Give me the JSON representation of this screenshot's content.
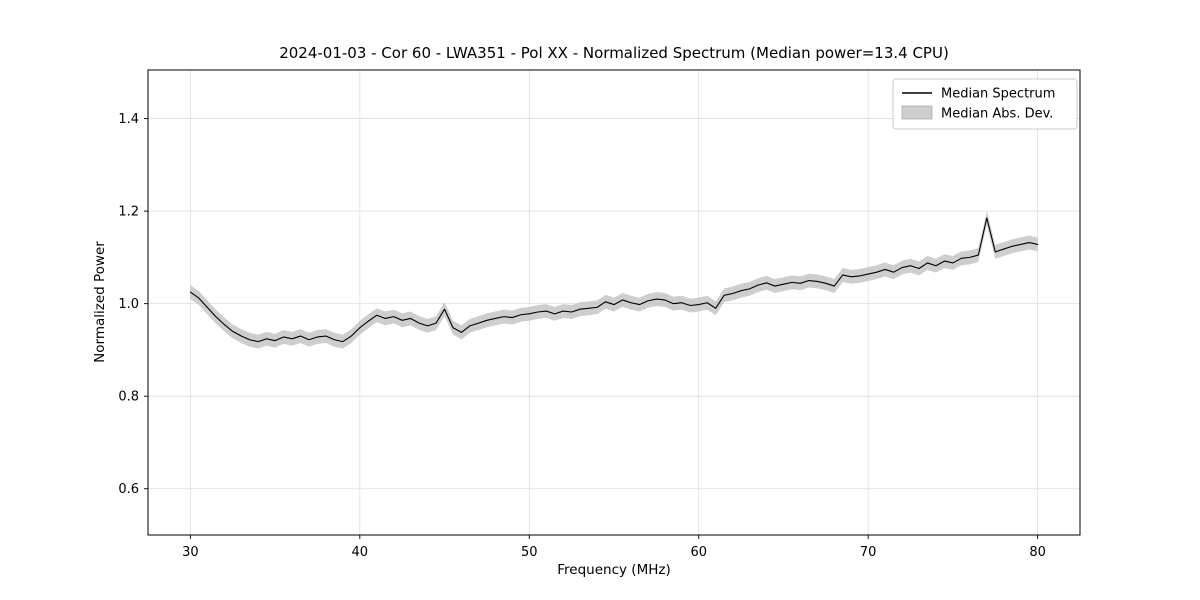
{
  "chart_data": {
    "type": "line",
    "title": "2024-01-03 - Cor 60 - LWA351 - Pol XX - Normalized Spectrum (Median power=13.4 CPU)",
    "xlabel": "Frequency (MHz)",
    "ylabel": "Normalized Power",
    "xlim": [
      27.5,
      82.5
    ],
    "ylim": [
      0.5,
      1.505
    ],
    "xticks": [
      30,
      40,
      50,
      60,
      70,
      80
    ],
    "xtick_labels": [
      "30",
      "40",
      "50",
      "60",
      "70",
      "80"
    ],
    "yticks": [
      0.6,
      0.8,
      1.0,
      1.2,
      1.4
    ],
    "ytick_labels": [
      "0.6",
      "0.8",
      "1.0",
      "1.2",
      "1.4"
    ],
    "grid": true,
    "legend_position": "upper right",
    "colors": {
      "line": "#000000",
      "band": "#bdbdbd",
      "grid": "#dedede",
      "axes_border": "#000000",
      "legend_border": "#cccccc"
    },
    "series": [
      {
        "name": "Median Spectrum",
        "type": "line",
        "color": "#000000",
        "x": [
          30.0,
          30.5,
          31.0,
          31.5,
          32.0,
          32.5,
          33.0,
          33.5,
          34.0,
          34.5,
          35.0,
          35.5,
          36.0,
          36.5,
          37.0,
          37.5,
          38.0,
          38.5,
          39.0,
          39.5,
          40.0,
          40.5,
          41.0,
          41.5,
          42.0,
          42.5,
          43.0,
          43.5,
          44.0,
          44.5,
          45.0,
          45.5,
          46.0,
          46.5,
          47.0,
          47.5,
          48.0,
          48.5,
          49.0,
          49.5,
          50.0,
          50.5,
          51.0,
          51.5,
          52.0,
          52.5,
          53.0,
          53.5,
          54.0,
          54.5,
          55.0,
          55.5,
          56.0,
          56.5,
          57.0,
          57.5,
          58.0,
          58.5,
          59.0,
          59.5,
          60.0,
          60.5,
          61.0,
          61.5,
          62.0,
          62.5,
          63.0,
          63.5,
          64.0,
          64.5,
          65.0,
          65.5,
          66.0,
          66.5,
          67.0,
          67.5,
          68.0,
          68.5,
          69.0,
          69.5,
          70.0,
          70.5,
          71.0,
          71.5,
          72.0,
          72.5,
          73.0,
          73.5,
          74.0,
          74.5,
          75.0,
          75.5,
          76.0,
          76.5,
          77.0,
          77.5,
          78.0,
          78.5,
          79.0,
          79.5,
          80.0
        ],
        "y": [
          1.025,
          1.012,
          0.992,
          0.972,
          0.955,
          0.94,
          0.93,
          0.922,
          0.918,
          0.924,
          0.92,
          0.928,
          0.924,
          0.93,
          0.922,
          0.928,
          0.93,
          0.922,
          0.918,
          0.93,
          0.948,
          0.962,
          0.975,
          0.968,
          0.972,
          0.964,
          0.968,
          0.958,
          0.952,
          0.958,
          0.988,
          0.948,
          0.938,
          0.952,
          0.958,
          0.964,
          0.968,
          0.972,
          0.97,
          0.976,
          0.978,
          0.982,
          0.984,
          0.978,
          0.984,
          0.982,
          0.988,
          0.99,
          0.992,
          1.004,
          0.998,
          1.008,
          1.002,
          0.998,
          1.006,
          1.01,
          1.008,
          1.0,
          1.002,
          0.996,
          0.998,
          1.002,
          0.99,
          1.018,
          1.022,
          1.028,
          1.032,
          1.04,
          1.045,
          1.038,
          1.042,
          1.046,
          1.044,
          1.05,
          1.048,
          1.044,
          1.038,
          1.062,
          1.058,
          1.06,
          1.064,
          1.068,
          1.074,
          1.068,
          1.078,
          1.082,
          1.076,
          1.088,
          1.082,
          1.092,
          1.088,
          1.098,
          1.1,
          1.105,
          1.185,
          1.112,
          1.118,
          1.124,
          1.128,
          1.132,
          1.128
        ]
      },
      {
        "name": "Median Abs. Dev.",
        "type": "band",
        "color": "#bdbdbd",
        "halfwidth": 0.015
      }
    ]
  }
}
